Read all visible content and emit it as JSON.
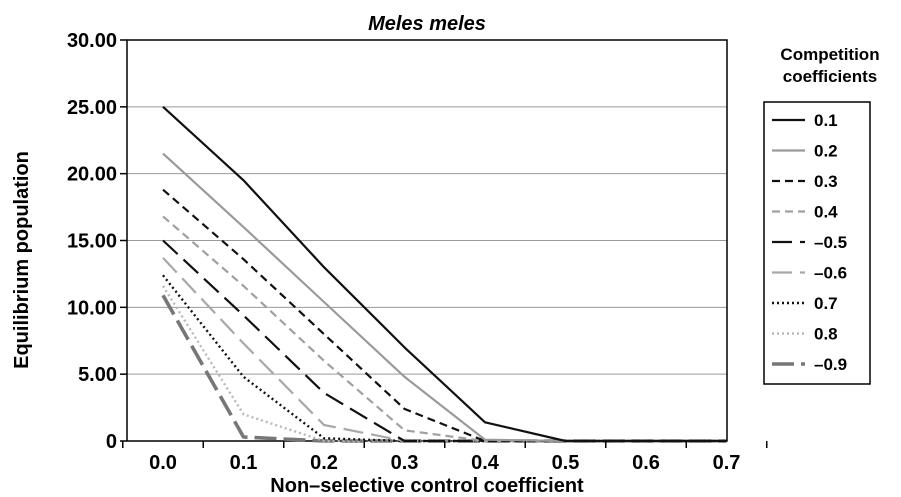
{
  "chart_data": {
    "type": "line",
    "title": "Meles meles",
    "xlabel": "Non–selective control coefficient",
    "ylabel": "Equilibrium population",
    "x": [
      0.0,
      0.1,
      0.2,
      0.3,
      0.4,
      0.5,
      0.6,
      0.7
    ],
    "x_tick_labels": [
      "0.0",
      "0.1",
      "0.2",
      "0.3",
      "0.4",
      "0.5",
      "0.6",
      "0.7"
    ],
    "y_tick_labels": [
      "0",
      "5.00",
      "10.00",
      "15.00",
      "20.00",
      "25.00",
      "30.00"
    ],
    "ylim": [
      0,
      30
    ],
    "grid": true,
    "legend_title": "Competition coefficients",
    "legend_position": "right",
    "series": [
      {
        "name": "0.1",
        "color": "#111111",
        "dash": "solid",
        "values": [
          25.0,
          19.5,
          13.0,
          7.0,
          1.4,
          0.0,
          0.0,
          0.0
        ]
      },
      {
        "name": "0.2",
        "color": "#9a9a9a",
        "dash": "solid",
        "values": [
          21.5,
          16.0,
          10.4,
          4.8,
          0.1,
          0.0,
          0.0,
          0.0
        ]
      },
      {
        "name": "0.3",
        "color": "#111111",
        "dash": "short",
        "values": [
          18.8,
          13.6,
          8.0,
          2.4,
          0.0,
          0.0,
          0.0,
          0.0
        ]
      },
      {
        "name": "0.4",
        "color": "#a0a0a0",
        "dash": "short",
        "values": [
          16.8,
          11.6,
          6.0,
          0.8,
          0.0,
          0.0,
          0.0,
          0.0
        ]
      },
      {
        "name": "–0.5",
        "color": "#111111",
        "dash": "long",
        "values": [
          15.0,
          9.4,
          3.6,
          0.0,
          0.0,
          0.0,
          0.0,
          0.0
        ]
      },
      {
        "name": "–0.6",
        "color": "#a8a8a8",
        "dash": "long",
        "values": [
          13.7,
          7.3,
          1.2,
          0.0,
          0.0,
          0.0,
          0.0,
          0.0
        ]
      },
      {
        "name": "0.7",
        "color": "#111111",
        "dash": "dot",
        "values": [
          12.4,
          4.8,
          0.2,
          0.0,
          0.0,
          0.0,
          0.0,
          0.0
        ]
      },
      {
        "name": "0.8",
        "color": "#b8b8b8",
        "dash": "dot",
        "values": [
          11.6,
          2.0,
          0.0,
          0.0,
          0.0,
          0.0,
          0.0,
          0.0
        ]
      },
      {
        "name": "–0.9",
        "color": "#777777",
        "dash": "thick",
        "values": [
          10.9,
          0.3,
          0.0,
          0.0,
          0.0,
          0.0,
          0.0,
          0.0
        ]
      }
    ]
  }
}
